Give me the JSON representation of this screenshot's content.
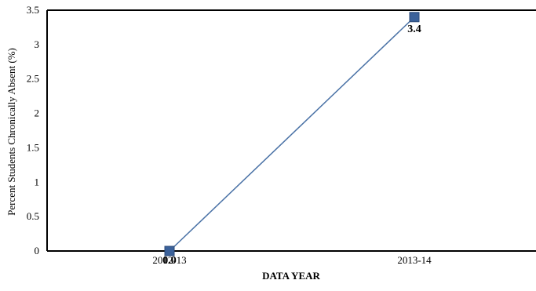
{
  "chart_data": {
    "type": "line",
    "categories": [
      "2012-13",
      "2013-14"
    ],
    "series": [
      {
        "values": [
          0,
          3.4
        ],
        "data_labels": [
          "0.0",
          "3.4"
        ]
      }
    ],
    "xlabel": "DATA YEAR",
    "ylabel": "Percent Students Chronically Absent (%)",
    "ylim": [
      0,
      3.5
    ],
    "yticks": [
      "0",
      "0.5",
      "1",
      "1.5",
      "2",
      "2.5",
      "3",
      "3.5"
    ],
    "grid": false,
    "legend": "none",
    "colors": {
      "line": "#4a72a6",
      "marker": "#3b619a",
      "marker_edge": "#2b4a78",
      "axis": "#000000"
    }
  }
}
